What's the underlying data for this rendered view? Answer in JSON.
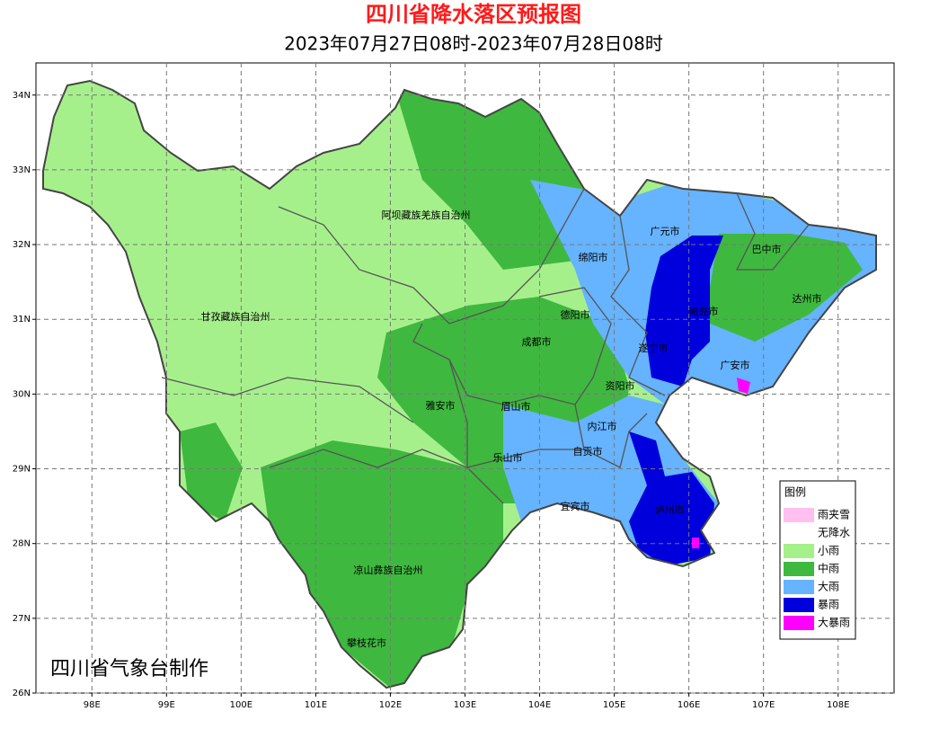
{
  "header": {
    "title": "四川省降水落区预报图",
    "subtitle": "2023年07月27日08时-2023年07月28日08时"
  },
  "map": {
    "lon_range": [
      97.25,
      108.75
    ],
    "lat_range": [
      26,
      34.43
    ],
    "lon_ticks": [
      {
        "value": 98,
        "label": "98E"
      },
      {
        "value": 99,
        "label": "99E"
      },
      {
        "value": 100,
        "label": "100E"
      },
      {
        "value": 101,
        "label": "101E"
      },
      {
        "value": 102,
        "label": "102E"
      },
      {
        "value": 103,
        "label": "103E"
      },
      {
        "value": 104,
        "label": "104E"
      },
      {
        "value": 105,
        "label": "105E"
      },
      {
        "value": 106,
        "label": "106E"
      },
      {
        "value": 107,
        "label": "107E"
      },
      {
        "value": 108,
        "label": "108E"
      }
    ],
    "lat_ticks": [
      {
        "value": 26,
        "label": "26N"
      },
      {
        "value": 27,
        "label": "27N"
      },
      {
        "value": 28,
        "label": "28N"
      },
      {
        "value": 29,
        "label": "29N"
      },
      {
        "value": 30,
        "label": "30N"
      },
      {
        "value": 31,
        "label": "31N"
      },
      {
        "value": 32,
        "label": "32N"
      },
      {
        "value": 33,
        "label": "33N"
      },
      {
        "value": 34,
        "label": "34N"
      }
    ],
    "regions": [
      "阿坝藏族羌族自治州",
      "甘孜藏族自治州",
      "广元市",
      "巴中市",
      "绵阳市",
      "达州市",
      "德阳市",
      "南充市",
      "成都市",
      "遂宁市",
      "广安市",
      "资阳市",
      "雅安市",
      "眉山市",
      "内江市",
      "自贡市",
      "乐山市",
      "宜宾市",
      "泸州市",
      "凉山彝族自治州",
      "攀枝花市"
    ]
  },
  "legend": {
    "title": "图例",
    "items": [
      {
        "label": "雨夹雪",
        "color": "#ffc0f0"
      },
      {
        "label": "无降水",
        "color": "#ffffff"
      },
      {
        "label": "小雨",
        "color": "#a6f08c"
      },
      {
        "label": "中雨",
        "color": "#3fb83f"
      },
      {
        "label": "大雨",
        "color": "#66b3ff"
      },
      {
        "label": "暴雨",
        "color": "#0000dd"
      },
      {
        "label": "大暴雨",
        "color": "#ff00ff"
      }
    ]
  },
  "credit": "四川省气象台制作"
}
